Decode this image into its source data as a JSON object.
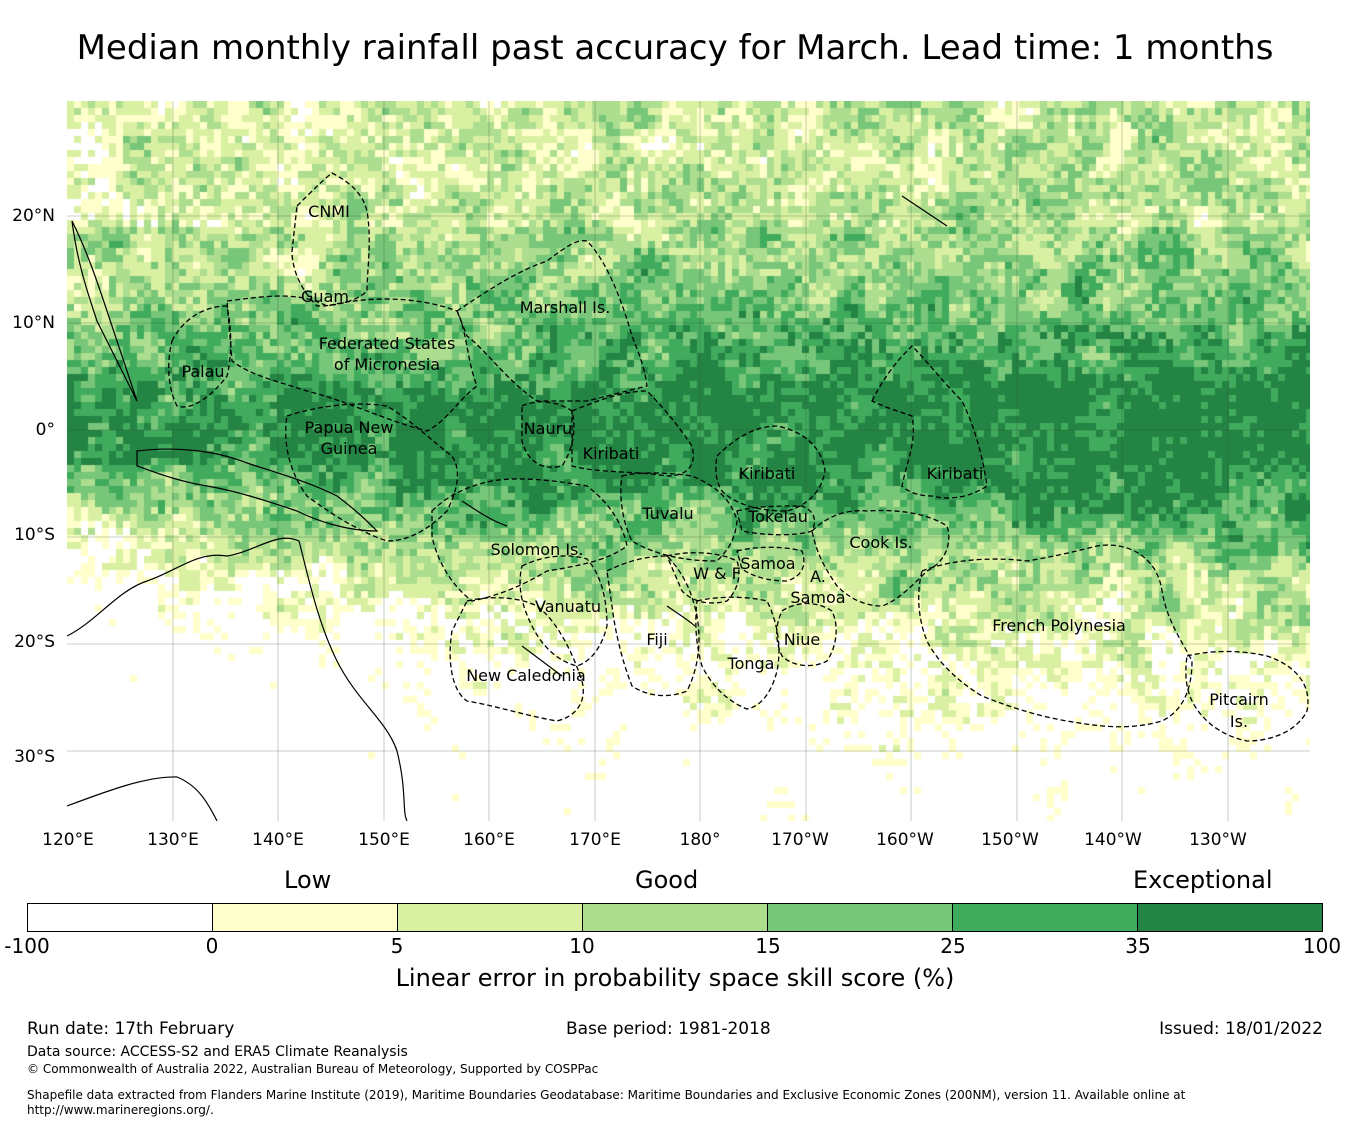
{
  "title": "Median monthly rainfall past accuracy for March. Lead time: 1 months",
  "map": {
    "lat_labels": [
      "20°N",
      "10°N",
      "0°",
      "10°S",
      "20°S",
      "30°S"
    ],
    "lon_labels": [
      "120°E",
      "130°E",
      "140°E",
      "150°E",
      "160°E",
      "170°E",
      "180°",
      "170°W",
      "160°W",
      "150°W",
      "140°W",
      "130°W"
    ],
    "regions": [
      "CNMI",
      "Guam",
      "Marshall Is.",
      "Federated States",
      "of Micronesia",
      "Palau",
      "Papua New",
      "Guinea",
      "Nauru",
      "Kiribati",
      "Kiribati",
      "Kiribati",
      "Tuvalu",
      "Tokelau",
      "Cook Is.",
      "Solomon Is.",
      "Samoa",
      "W & F",
      "A.",
      "Samoa",
      "Vanuatu",
      "Fiji",
      "Niue",
      "Tonga",
      "New Caledonia",
      "French Polynesia",
      "Pitcairn",
      "Is."
    ]
  },
  "legend": {
    "categories": [
      "Low",
      "Good",
      "Exceptional"
    ],
    "ticks": [
      "-100",
      "0",
      "5",
      "10",
      "15",
      "25",
      "35",
      "100"
    ],
    "colors": [
      "#ffffff",
      "#ffffcc",
      "#d9f0a3",
      "#addd8e",
      "#78c679",
      "#41ab5d",
      "#238443"
    ],
    "title": "Linear error in probability space skill score (%)"
  },
  "footer": {
    "run_date": "Run date: 17th February",
    "base_period": "Base period: 1981-2018",
    "issued": "Issued: 18/01/2022",
    "data_source": "Data source: ACCESS-S2 and ERA5 Climate Reanalysis",
    "copyright": "© Commonwealth of Australia 2022, Australian Bureau of Meteorology, Supported by COSPPac",
    "shapefile_line1": "Shapefile data extracted from Flanders Marine Institute (2019), Maritime Boundaries Geodatabase: Maritime Boundaries and Exclusive Economic Zones (200NM), version 11. Available online at",
    "shapefile_line2": "http://www.marineregions.org/."
  }
}
